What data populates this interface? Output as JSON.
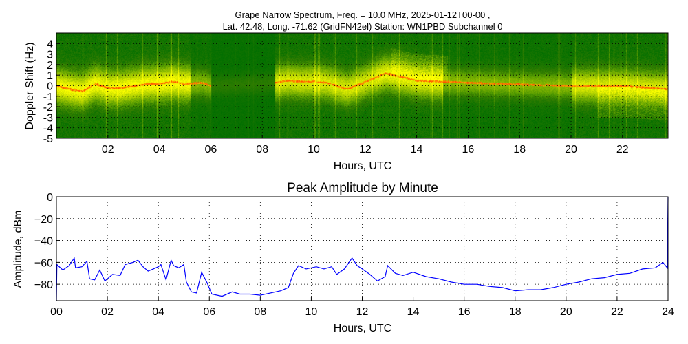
{
  "chart_data": [
    {
      "type": "heatmap",
      "title_lines": [
        "Grape Narrow Spectrum, Freq. = 10.0 MHz, 2025-01-12T00-00 ,",
        "Lat.  42.48, Long. -71.62 (GridFN42el) Station: WN1PBD Subchannel 0"
      ],
      "xlabel": "Hours, UTC",
      "ylabel": "Doppler Shift (Hz)",
      "xlim": [
        0,
        23.77
      ],
      "ylim": [
        -5,
        5
      ],
      "xticks": [
        2,
        4,
        6,
        8,
        10,
        12,
        14,
        16,
        18,
        20,
        22
      ],
      "xtick_labels": [
        "02",
        "04",
        "06",
        "08",
        "10",
        "12",
        "14",
        "16",
        "18",
        "20",
        "22"
      ],
      "yticks": [
        -5,
        -4,
        -3,
        -2,
        -1,
        0,
        1,
        2,
        3,
        4
      ],
      "ytick_labels": [
        "-5",
        "-4",
        "-3",
        "-2",
        "-1",
        "0",
        "1",
        "2",
        "3",
        "4"
      ],
      "grid": true,
      "colors": {
        "background": "#007f00",
        "mid": "#ffff00",
        "peak": "#ff2000"
      },
      "peak_trace": {
        "x": [
          0,
          0.5,
          1.0,
          1.5,
          2.0,
          2.5,
          3.0,
          3.5,
          4.0,
          4.5,
          5.0,
          5.7,
          6.0,
          8.5,
          9.0,
          9.5,
          10.0,
          10.5,
          11.0,
          11.3,
          12.0,
          12.8,
          13.5,
          14.0,
          16.0,
          20.0,
          22.0,
          23.77
        ],
        "y": [
          0,
          -0.3,
          -0.5,
          0.2,
          -0.2,
          -0.2,
          0,
          0.2,
          0.2,
          0.4,
          0.2,
          0.3,
          0,
          0.3,
          0.5,
          0.4,
          0.4,
          0.3,
          -0.1,
          -0.3,
          0.4,
          1.2,
          0.8,
          0.5,
          0.3,
          0,
          0,
          -0.3
        ]
      }
    },
    {
      "type": "line",
      "title": "Peak Amplitude by Minute",
      "xlabel": "Hours, UTC",
      "ylabel": "Amplitude, dBm",
      "xlim": [
        0,
        24
      ],
      "ylim": [
        -95,
        0
      ],
      "xticks": [
        0,
        2,
        4,
        6,
        8,
        10,
        12,
        14,
        16,
        18,
        20,
        22,
        24
      ],
      "xtick_labels": [
        "00",
        "02",
        "04",
        "06",
        "08",
        "10",
        "12",
        "14",
        "16",
        "18",
        "20",
        "22",
        "24"
      ],
      "yticks": [
        0,
        -20,
        -40,
        -60,
        -80
      ],
      "ytick_labels": [
        "0",
        "−20",
        "−40",
        "−60",
        "−80"
      ],
      "grid": true,
      "color": "#0000ff",
      "x": [
        0,
        0.02,
        0.25,
        0.5,
        0.7,
        0.75,
        1.0,
        1.2,
        1.3,
        1.5,
        1.7,
        1.9,
        2.2,
        2.5,
        2.7,
        3.0,
        3.2,
        3.4,
        3.6,
        3.8,
        4.0,
        4.1,
        4.3,
        4.5,
        4.6,
        4.8,
        5.0,
        5.1,
        5.3,
        5.5,
        5.7,
        5.9,
        6.1,
        6.5,
        6.9,
        7.2,
        7.6,
        8.0,
        8.4,
        8.8,
        9.1,
        9.3,
        9.5,
        9.8,
        10.2,
        10.5,
        10.8,
        11.0,
        11.3,
        11.6,
        11.8,
        12.0,
        12.3,
        12.6,
        12.9,
        13.0,
        13.3,
        13.6,
        14.0,
        14.5,
        15.0,
        15.5,
        16.0,
        16.5,
        17.0,
        17.5,
        18.0,
        18.5,
        19.0,
        19.5,
        20.0,
        20.5,
        21.0,
        21.5,
        22.0,
        22.5,
        23.0,
        23.5,
        23.8,
        23.97,
        24.0
      ],
      "y": [
        -95,
        -62,
        -67,
        -63,
        -56,
        -65,
        -64,
        -59,
        -75,
        -76,
        -67,
        -77,
        -71,
        -72,
        -62,
        -60,
        -58,
        -64,
        -68,
        -66,
        -64,
        -62,
        -76,
        -58,
        -63,
        -65,
        -62,
        -78,
        -87,
        -88,
        -69,
        -78,
        -89,
        -91,
        -87,
        -89,
        -89,
        -90,
        -88,
        -86,
        -83,
        -70,
        -63,
        -66,
        -64,
        -66,
        -64,
        -71,
        -66,
        -56,
        -63,
        -66,
        -71,
        -77,
        -73,
        -63,
        -70,
        -72,
        -69,
        -73,
        -75,
        -78,
        -80,
        -80,
        -82,
        -83,
        -86,
        -85,
        -85,
        -83,
        -80,
        -78,
        -75,
        -74,
        -71,
        -70,
        -66,
        -65,
        -60,
        -65,
        0
      ]
    }
  ]
}
